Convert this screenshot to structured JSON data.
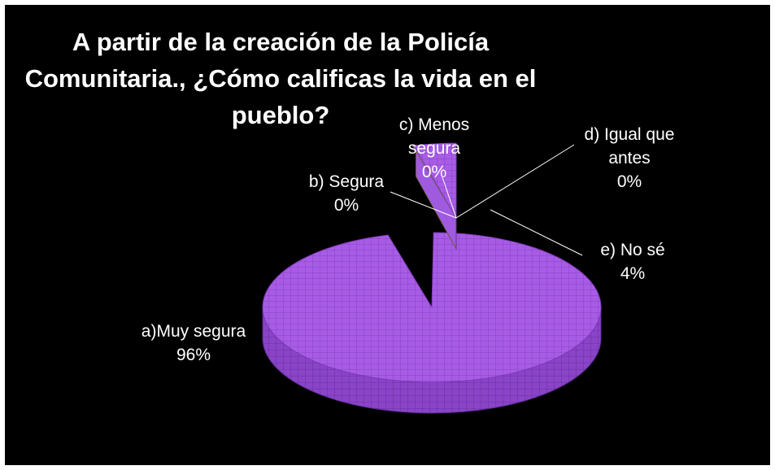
{
  "chart_data": {
    "type": "pie",
    "title_lines": [
      "A partir de la creación de la Policía",
      "Comunitaria., ¿Cómo calificas la vida en el",
      "pueblo?"
    ],
    "slices": [
      {
        "category": "a)Muy segura",
        "value": 96,
        "value_label": "96%",
        "color": "#a85ce6"
      },
      {
        "category": "b) Segura",
        "value": 0,
        "value_label": "0%",
        "color": "#e8c98e"
      },
      {
        "category": "c) Menos segura",
        "value": 0,
        "value_label": "0%",
        "color": "#c9b26a"
      },
      {
        "category": "d) Igual que antes",
        "value": 0,
        "value_label": "0%",
        "color": "#9f5ae0"
      },
      {
        "category": "e) No sé",
        "value": 4,
        "value_label": "4%",
        "color": "#a85ce6"
      }
    ],
    "label_lines": {
      "a": [
        "a)Muy segura",
        "96%"
      ],
      "b": [
        "b) Segura",
        "0%"
      ],
      "c": [
        "c) Menos",
        "segura",
        "0%"
      ],
      "d": [
        "d) Igual que",
        "antes",
        "0%"
      ],
      "e": [
        "e) No sé",
        "4%"
      ]
    },
    "style": "3d-exploded",
    "legend": "none",
    "background": "#000000"
  }
}
